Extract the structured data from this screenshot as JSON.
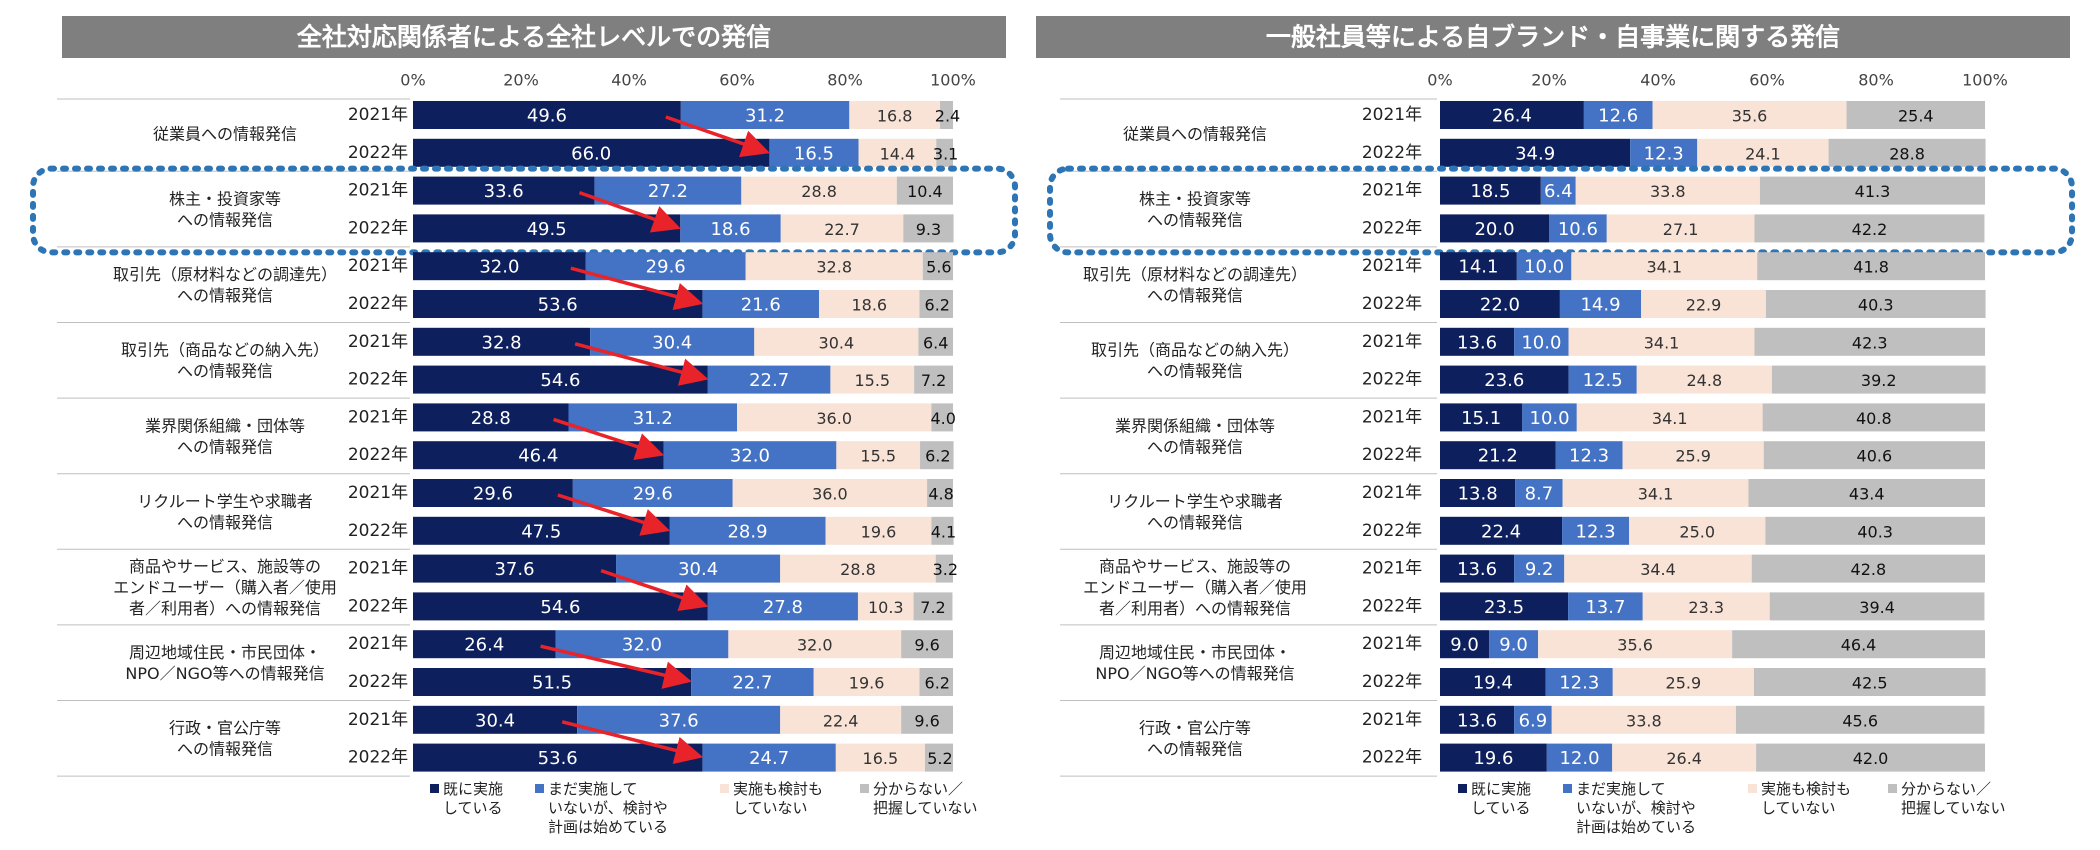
{
  "colors": {
    "done": "#0d1f5c",
    "considering": "#4472c4",
    "not_considering": "#f8e3d6",
    "unknown": "#bfbfbf",
    "title_bg": "#7f7f7f",
    "arrow": "#e8232a",
    "dotted_box": "#2e75b6"
  },
  "legend": [
    {
      "key": "done",
      "label": "既に実施\nしている"
    },
    {
      "key": "considering",
      "label": "まだ実施して\nいないが、検討や\n計画は始めている"
    },
    {
      "key": "not_considering",
      "label": "実施も検討も\nしていない"
    },
    {
      "key": "unknown",
      "label": "分からない／\n把握していない"
    }
  ],
  "chart_data": [
    {
      "type": "bar",
      "orientation": "horizontal",
      "stacked": true,
      "title": "全社対応関係者による全社レベルでの発信",
      "xlim": [
        0,
        100
      ],
      "xticks": [
        "0%",
        "20%",
        "40%",
        "60%",
        "80%",
        "100%"
      ],
      "series_names": [
        "既に実施している",
        "まだ実施していないが、検討や計画は始めている",
        "実施も検討もしていない",
        "分からない／把握していない"
      ],
      "categories": [
        {
          "label": "従業員への情報発信",
          "rows": [
            {
              "year": "2021年",
              "values": [
                49.6,
                31.2,
                16.8,
                2.4
              ]
            },
            {
              "year": "2022年",
              "values": [
                66.0,
                16.5,
                14.4,
                3.1
              ]
            }
          ]
        },
        {
          "label": "株主・投資家等\nへの情報発信",
          "highlight": true,
          "rows": [
            {
              "year": "2021年",
              "values": [
                33.6,
                27.2,
                28.8,
                10.4
              ]
            },
            {
              "year": "2022年",
              "values": [
                49.5,
                18.6,
                22.7,
                9.3
              ]
            }
          ]
        },
        {
          "label": "取引先（原材料などの調達先）\nへの情報発信",
          "rows": [
            {
              "year": "2021年",
              "values": [
                32.0,
                29.6,
                32.8,
                5.6
              ]
            },
            {
              "year": "2022年",
              "values": [
                53.6,
                21.6,
                18.6,
                6.2
              ]
            }
          ]
        },
        {
          "label": "取引先（商品などの納入先）\nへの情報発信",
          "rows": [
            {
              "year": "2021年",
              "values": [
                32.8,
                30.4,
                30.4,
                6.4
              ]
            },
            {
              "year": "2022年",
              "values": [
                54.6,
                22.7,
                15.5,
                7.2
              ]
            }
          ]
        },
        {
          "label": "業界関係組織・団体等\nへの情報発信",
          "rows": [
            {
              "year": "2021年",
              "values": [
                28.8,
                31.2,
                36.0,
                4.0
              ]
            },
            {
              "year": "2022年",
              "values": [
                46.4,
                32.0,
                15.5,
                6.2
              ]
            }
          ]
        },
        {
          "label": "リクルート学生や求職者\nへの情報発信",
          "rows": [
            {
              "year": "2021年",
              "values": [
                29.6,
                29.6,
                36.0,
                4.8
              ]
            },
            {
              "year": "2022年",
              "values": [
                47.5,
                28.9,
                19.6,
                4.1
              ]
            }
          ]
        },
        {
          "label": "商品やサービス、施設等の\nエンドユーザー（購入者／使用\n者／利用者）への情報発信",
          "rows": [
            {
              "year": "2021年",
              "values": [
                37.6,
                30.4,
                28.8,
                3.2
              ]
            },
            {
              "year": "2022年",
              "values": [
                54.6,
                27.8,
                10.3,
                7.2
              ]
            }
          ]
        },
        {
          "label": "周辺地域住民・市民団体・\nNPO／NGO等への情報発信",
          "rows": [
            {
              "year": "2021年",
              "values": [
                26.4,
                32.0,
                32.0,
                9.6
              ]
            },
            {
              "year": "2022年",
              "values": [
                51.5,
                22.7,
                19.6,
                6.2
              ]
            }
          ]
        },
        {
          "label": "行政・官公庁等\nへの情報発信",
          "rows": [
            {
              "year": "2021年",
              "values": [
                30.4,
                37.6,
                22.4,
                9.6
              ]
            },
            {
              "year": "2022年",
              "values": [
                53.6,
                24.7,
                16.5,
                5.2
              ]
            }
          ]
        }
      ]
    },
    {
      "type": "bar",
      "orientation": "horizontal",
      "stacked": true,
      "title": "一般社員等による自ブランド・自事業に関する発信",
      "xlim": [
        0,
        100
      ],
      "xticks": [
        "0%",
        "20%",
        "40%",
        "60%",
        "80%",
        "100%"
      ],
      "series_names": [
        "既に実施している",
        "まだ実施していないが、検討や計画は始めている",
        "実施も検討もしていない",
        "分からない／把握していない"
      ],
      "categories": [
        {
          "label": "従業員への情報発信",
          "rows": [
            {
              "year": "2021年",
              "values": [
                26.4,
                12.6,
                35.6,
                25.4
              ]
            },
            {
              "year": "2022年",
              "values": [
                34.9,
                12.3,
                24.1,
                28.8
              ]
            }
          ]
        },
        {
          "label": "株主・投資家等\nへの情報発信",
          "highlight": true,
          "rows": [
            {
              "year": "2021年",
              "values": [
                18.5,
                6.4,
                33.8,
                41.3
              ]
            },
            {
              "year": "2022年",
              "values": [
                20.0,
                10.6,
                27.1,
                42.2
              ]
            }
          ]
        },
        {
          "label": "取引先（原材料などの調達先）\nへの情報発信",
          "rows": [
            {
              "year": "2021年",
              "values": [
                14.1,
                10.0,
                34.1,
                41.8
              ]
            },
            {
              "year": "2022年",
              "values": [
                22.0,
                14.9,
                22.9,
                40.3
              ]
            }
          ]
        },
        {
          "label": "取引先（商品などの納入先）\nへの情報発信",
          "rows": [
            {
              "year": "2021年",
              "values": [
                13.6,
                10.0,
                34.1,
                42.3
              ]
            },
            {
              "year": "2022年",
              "values": [
                23.6,
                12.5,
                24.8,
                39.2
              ]
            }
          ]
        },
        {
          "label": "業界関係組織・団体等\nへの情報発信",
          "rows": [
            {
              "year": "2021年",
              "values": [
                15.1,
                10.0,
                34.1,
                40.8
              ]
            },
            {
              "year": "2022年",
              "values": [
                21.2,
                12.3,
                25.9,
                40.6
              ]
            }
          ]
        },
        {
          "label": "リクルート学生や求職者\nへの情報発信",
          "rows": [
            {
              "year": "2021年",
              "values": [
                13.8,
                8.7,
                34.1,
                43.4
              ]
            },
            {
              "year": "2022年",
              "values": [
                22.4,
                12.3,
                25.0,
                40.3
              ]
            }
          ]
        },
        {
          "label": "商品やサービス、施設等の\nエンドユーザー（購入者／使用\n者／利用者）への情報発信",
          "rows": [
            {
              "year": "2021年",
              "values": [
                13.6,
                9.2,
                34.4,
                42.8
              ]
            },
            {
              "year": "2022年",
              "values": [
                23.5,
                13.7,
                23.3,
                39.4
              ]
            }
          ]
        },
        {
          "label": "周辺地域住民・市民団体・\nNPO／NGO等への情報発信",
          "rows": [
            {
              "year": "2021年",
              "values": [
                9.0,
                9.0,
                35.6,
                46.4
              ]
            },
            {
              "year": "2022年",
              "values": [
                19.4,
                12.3,
                25.9,
                42.5
              ]
            }
          ]
        },
        {
          "label": "行政・官公庁等\nへの情報発信",
          "rows": [
            {
              "year": "2021年",
              "values": [
                13.6,
                6.9,
                33.8,
                45.6
              ]
            },
            {
              "year": "2022年",
              "values": [
                19.6,
                12.0,
                26.4,
                42.0
              ]
            }
          ]
        }
      ]
    }
  ]
}
